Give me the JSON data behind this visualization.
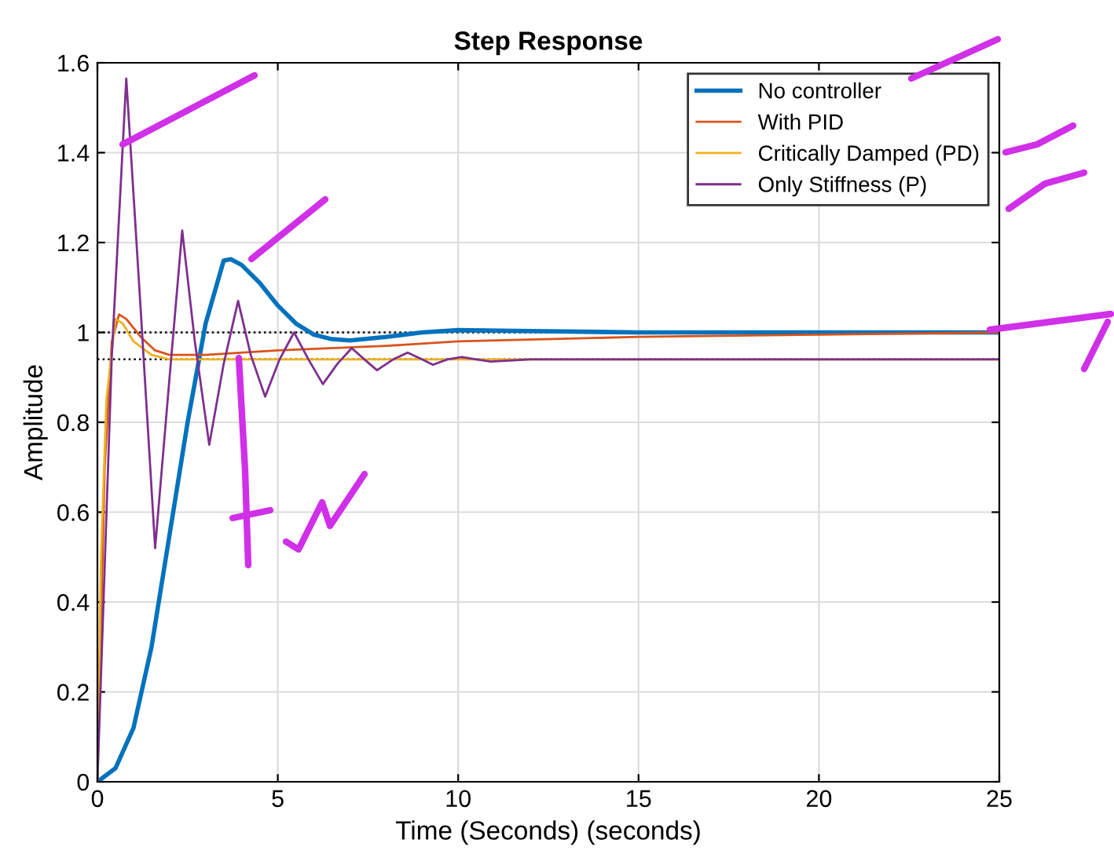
{
  "chart_data": {
    "type": "line",
    "title": "Step Response",
    "xlabel": "Time (Seconds) (seconds)",
    "ylabel": "Amplitude",
    "xlim": [
      0,
      25
    ],
    "ylim": [
      0,
      1.6
    ],
    "xticks": [
      0,
      5,
      10,
      15,
      20,
      25
    ],
    "yticks": [
      0,
      0.2,
      0.4,
      0.6,
      0.8,
      1,
      1.2,
      1.4,
      1.6
    ],
    "grid": true,
    "legend": "top right",
    "marker": "none",
    "line_style": "solid",
    "ref_lines": [
      {
        "axis": "y",
        "value": 1,
        "color": "#000000",
        "line_style": "dotted"
      },
      {
        "axis": "y",
        "value": 0.94,
        "color": "#000000",
        "line_style": "dotted"
      }
    ],
    "series": [
      {
        "name": "No controller",
        "color": "#0072bd",
        "x": [
          0,
          0.5,
          1,
          1.5,
          2,
          2.5,
          3,
          3.5,
          3.7,
          4,
          4.5,
          5,
          5.5,
          6,
          6.5,
          7,
          8,
          9,
          10,
          12,
          15,
          25
        ],
        "values": [
          0,
          0.03,
          0.12,
          0.3,
          0.55,
          0.8,
          1.02,
          1.16,
          1.163,
          1.15,
          1.11,
          1.06,
          1.02,
          0.995,
          0.985,
          0.982,
          0.99,
          1.0,
          1.005,
          1.003,
          1.0,
          1.0
        ]
      },
      {
        "name": "With PID",
        "color": "#d95319",
        "x": [
          0,
          0.2,
          0.4,
          0.6,
          0.8,
          1.2,
          1.6,
          2,
          3,
          5,
          8,
          10,
          15,
          20,
          25
        ],
        "values": [
          0,
          0.7,
          0.98,
          1.04,
          1.03,
          0.99,
          0.96,
          0.95,
          0.95,
          0.96,
          0.97,
          0.98,
          0.99,
          0.995,
          1.0
        ]
      },
      {
        "name": "Critically Damped (PD)",
        "color": "#edb120",
        "x": [
          0,
          0.1,
          0.25,
          0.5,
          0.7,
          1,
          1.5,
          2,
          25
        ],
        "values": [
          0,
          0.5,
          0.85,
          1.03,
          1.02,
          0.98,
          0.95,
          0.94,
          0.94
        ]
      },
      {
        "name": "Only Stiffness (P)",
        "color": "#7e2f8e",
        "x": [
          0,
          0.4,
          0.8,
          1.2,
          1.6,
          2.0,
          2.35,
          2.7,
          3.1,
          3.5,
          3.9,
          4.25,
          4.65,
          5.05,
          5.45,
          5.85,
          6.25,
          6.65,
          7.05,
          7.4,
          7.75,
          8.2,
          8.6,
          9.0,
          9.3,
          9.7,
          10.1,
          10.5,
          10.9,
          12,
          25
        ],
        "values": [
          0,
          0.95,
          1.565,
          1.05,
          0.52,
          0.9,
          1.227,
          0.98,
          0.75,
          0.93,
          1.07,
          0.95,
          0.857,
          0.94,
          1.0,
          0.94,
          0.885,
          0.93,
          0.965,
          0.94,
          0.916,
          0.94,
          0.955,
          0.94,
          0.928,
          0.94,
          0.945,
          0.94,
          0.935,
          0.94,
          0.94
        ]
      }
    ]
  }
}
